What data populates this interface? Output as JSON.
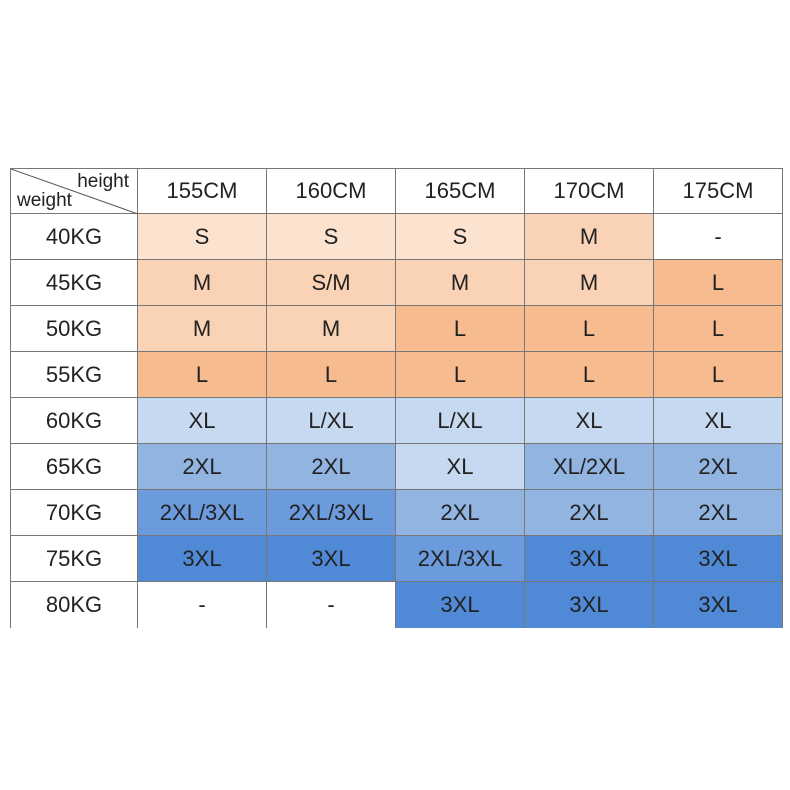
{
  "table": {
    "corner": {
      "column_label": "height",
      "row_label": "weight"
    },
    "columns": [
      "155CM",
      "160CM",
      "165CM",
      "170CM",
      "175CM"
    ],
    "rows": [
      {
        "label": "40KG",
        "cells": [
          "S",
          "S",
          "S",
          "M",
          "-"
        ]
      },
      {
        "label": "45KG",
        "cells": [
          "M",
          "S/M",
          "M",
          "M",
          "L"
        ]
      },
      {
        "label": "50KG",
        "cells": [
          "M",
          "M",
          "L",
          "L",
          "L"
        ]
      },
      {
        "label": "55KG",
        "cells": [
          "L",
          "L",
          "L",
          "L",
          "L"
        ]
      },
      {
        "label": "60KG",
        "cells": [
          "XL",
          "L/XL",
          "L/XL",
          "XL",
          "XL"
        ]
      },
      {
        "label": "65KG",
        "cells": [
          "2XL",
          "2XL",
          "XL",
          "XL/2XL",
          "2XL"
        ]
      },
      {
        "label": "70KG",
        "cells": [
          "2XL/3XL",
          "2XL/3XL",
          "2XL",
          "2XL",
          "2XL"
        ]
      },
      {
        "label": "75KG",
        "cells": [
          "3XL",
          "3XL",
          "2XL/3XL",
          "3XL",
          "3XL"
        ]
      },
      {
        "label": "80KG",
        "cells": [
          "-",
          "-",
          "3XL",
          "3XL",
          "3XL"
        ]
      }
    ]
  }
}
